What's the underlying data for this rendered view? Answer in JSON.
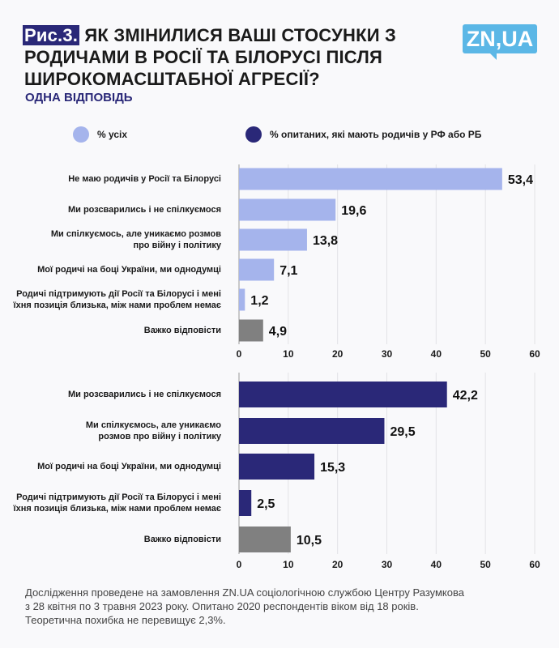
{
  "header": {
    "figure_label": "Рис.3.",
    "title": "ЯК ЗМІНИЛИСЯ ВАШІ СТОСУНКИ З РОДИЧАМИ В РОСІЇ ТА БІЛОРУСІ ПІСЛЯ ШИРОКОМАСШТАБНОЇ АГРЕСІЇ?",
    "subtitle": "ОДНА ВІДПОВІДЬ",
    "logo": "ZN,UA"
  },
  "legend": [
    {
      "label": "% усіх",
      "color": "#a5b4ec"
    },
    {
      "label": "% опитаних, які мають родичів у РФ або РБ",
      "color": "#2a2878"
    }
  ],
  "colors": {
    "all": "#a5b4ec",
    "relatives": "#2a2878",
    "hard_to_say": "#808080"
  },
  "chart_data": [
    {
      "type": "bar",
      "orientation": "horizontal",
      "series_name": "% усіх",
      "xlim": [
        0,
        60
      ],
      "ticks": [
        "0",
        "10",
        "20",
        "30",
        "40",
        "50",
        "60"
      ],
      "grid": true,
      "categories": [
        "Не маю родичів у Росії та Білорусі",
        "Ми розсварились і не спілкуємося",
        "Ми спілкуємось, але уникаємо розмов\nпро війну і політику",
        "Мої родичі на боці України, ми однодумці",
        "Родичі підтримують дії Росії та Білорусі і мені\nїхня позиція близька, між нами проблем немає",
        "Важко відповісти"
      ],
      "values": [
        53.4,
        19.6,
        13.8,
        7.1,
        1.2,
        4.9
      ],
      "labels": [
        "53,4",
        "19,6",
        "13,8",
        "7,1",
        "1,2",
        "4,9"
      ]
    },
    {
      "type": "bar",
      "orientation": "horizontal",
      "series_name": "% опитаних, які мають родичів у РФ або РБ",
      "xlim": [
        0,
        60
      ],
      "ticks": [
        "0",
        "10",
        "20",
        "30",
        "40",
        "50",
        "60"
      ],
      "grid": true,
      "categories": [
        "Ми розсварились і не спілкуємося",
        "Ми спілкуємось, але уникаємо\nрозмов про війну і політику",
        "Мої родичі на боці України, ми однодумці",
        "Родичі підтримують дії Росії та Білорусі і мені\nїхня позиція близька, між нами проблем немає",
        "Важко відповісти"
      ],
      "values": [
        42.2,
        29.5,
        15.3,
        2.5,
        10.5
      ],
      "labels": [
        "42,2",
        "29,5",
        "15,3",
        "2,5",
        "10,5"
      ]
    }
  ],
  "footer": {
    "lines": [
      "Дослідження проведене на замовлення ZN.UA соціологічною службою Центру Разумкова",
      "з 28 квітня по 3 травня 2023 року. Опитано 2020 респондентів віком від 18 років.",
      "Теоретична похибка не перевищує 2,3%."
    ]
  }
}
